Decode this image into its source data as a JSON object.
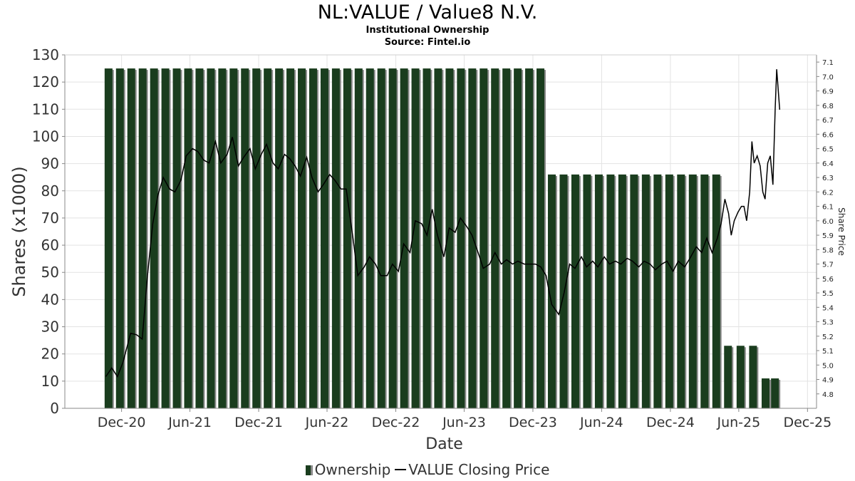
{
  "header": {
    "title": "NL:VALUE / Value8 N.V.",
    "subtitle": "Institutional Ownership",
    "source": "Source: Fintel.io"
  },
  "legend": {
    "ownership": "Ownership",
    "price": "VALUE Closing Price"
  },
  "colors": {
    "bar": "#1a3d1e",
    "bar_shadow": "#8c8c8c",
    "line": "#000000",
    "grid": "#e3e3e3"
  },
  "chart_data": {
    "type": "bar",
    "xlabel": "Date",
    "ylabel": "Shares (x1000)",
    "y2label": "Share Price",
    "ylim": [
      0,
      130
    ],
    "y2lim": [
      4.7,
      7.15
    ],
    "yticks": [
      0,
      10,
      20,
      30,
      40,
      50,
      60,
      70,
      80,
      90,
      100,
      110,
      120,
      130
    ],
    "y2ticks": [
      4.8,
      4.9,
      5.0,
      5.1,
      5.2,
      5.3,
      5.4,
      5.5,
      5.6,
      5.7,
      5.8,
      5.9,
      6.0,
      6.1,
      6.2,
      6.3,
      6.4,
      6.5,
      6.6,
      6.7,
      6.8,
      6.9,
      7.0,
      7.1
    ],
    "xlim": [
      "2020-07-03",
      "2025-12-25"
    ],
    "xticks": [
      {
        "date": "2020-12-01",
        "label": "Dec-20"
      },
      {
        "date": "2021-06-01",
        "label": "Jun-21"
      },
      {
        "date": "2021-12-01",
        "label": "Dec-21"
      },
      {
        "date": "2022-06-01",
        "label": "Jun-22"
      },
      {
        "date": "2022-12-01",
        "label": "Dec-22"
      },
      {
        "date": "2023-06-01",
        "label": "Jun-23"
      },
      {
        "date": "2023-12-01",
        "label": "Dec-23"
      },
      {
        "date": "2024-06-01",
        "label": "Jun-24"
      },
      {
        "date": "2024-12-01",
        "label": "Dec-24"
      },
      {
        "date": "2025-06-01",
        "label": "Jun-25"
      },
      {
        "date": "2025-12-01",
        "label": "Dec-25"
      }
    ],
    "grid": true,
    "legend_position": "bottom",
    "series": [
      {
        "name": "Ownership",
        "kind": "bar",
        "segments": [
          {
            "start": "2020-10-15",
            "end": "2024-01-08",
            "value": 125
          },
          {
            "start": "2024-01-08",
            "end": "2025-04-21",
            "value": 86
          },
          {
            "start": "2025-04-21",
            "end": "2025-07-30",
            "value": 23
          },
          {
            "start": "2025-07-30",
            "end": "2025-09-18",
            "value": 11
          }
        ]
      },
      {
        "name": "VALUE Closing Price",
        "kind": "line",
        "points": [
          [
            "2020-10-20",
            4.92
          ],
          [
            "2020-11-05",
            4.98
          ],
          [
            "2020-11-20",
            4.92
          ],
          [
            "2020-12-05",
            5.02
          ],
          [
            "2020-12-25",
            5.22
          ],
          [
            "2021-01-10",
            5.21
          ],
          [
            "2021-01-25",
            5.18
          ],
          [
            "2021-02-08",
            5.62
          ],
          [
            "2021-02-22",
            5.98
          ],
          [
            "2021-03-08",
            6.18
          ],
          [
            "2021-03-22",
            6.3
          ],
          [
            "2021-04-08",
            6.22
          ],
          [
            "2021-04-22",
            6.2
          ],
          [
            "2021-05-08",
            6.28
          ],
          [
            "2021-05-22",
            6.45
          ],
          [
            "2021-06-08",
            6.5
          ],
          [
            "2021-06-22",
            6.48
          ],
          [
            "2021-07-08",
            6.42
          ],
          [
            "2021-07-22",
            6.4
          ],
          [
            "2021-08-08",
            6.55
          ],
          [
            "2021-08-22",
            6.4
          ],
          [
            "2021-09-08",
            6.46
          ],
          [
            "2021-09-22",
            6.58
          ],
          [
            "2021-10-08",
            6.38
          ],
          [
            "2021-10-22",
            6.44
          ],
          [
            "2021-11-08",
            6.5
          ],
          [
            "2021-11-22",
            6.36
          ],
          [
            "2021-12-08",
            6.46
          ],
          [
            "2021-12-22",
            6.53
          ],
          [
            "2022-01-08",
            6.4
          ],
          [
            "2022-01-22",
            6.36
          ],
          [
            "2022-02-08",
            6.46
          ],
          [
            "2022-02-22",
            6.43
          ],
          [
            "2022-03-08",
            6.38
          ],
          [
            "2022-03-22",
            6.31
          ],
          [
            "2022-04-08",
            6.44
          ],
          [
            "2022-04-22",
            6.3
          ],
          [
            "2022-05-08",
            6.2
          ],
          [
            "2022-05-22",
            6.25
          ],
          [
            "2022-06-08",
            6.32
          ],
          [
            "2022-06-22",
            6.28
          ],
          [
            "2022-07-08",
            6.22
          ],
          [
            "2022-07-22",
            6.22
          ],
          [
            "2022-08-08",
            5.9
          ],
          [
            "2022-08-22",
            5.62
          ],
          [
            "2022-09-08",
            5.68
          ],
          [
            "2022-09-22",
            5.75
          ],
          [
            "2022-10-08",
            5.7
          ],
          [
            "2022-10-22",
            5.62
          ],
          [
            "2022-11-08",
            5.62
          ],
          [
            "2022-11-22",
            5.7
          ],
          [
            "2022-12-08",
            5.65
          ],
          [
            "2022-12-22",
            5.84
          ],
          [
            "2023-01-08",
            5.78
          ],
          [
            "2023-01-22",
            6.0
          ],
          [
            "2023-02-08",
            5.98
          ],
          [
            "2023-02-22",
            5.9
          ],
          [
            "2023-03-08",
            6.08
          ],
          [
            "2023-03-22",
            5.9
          ],
          [
            "2023-04-08",
            5.75
          ],
          [
            "2023-04-22",
            5.95
          ],
          [
            "2023-05-08",
            5.92
          ],
          [
            "2023-05-22",
            6.02
          ],
          [
            "2023-06-08",
            5.96
          ],
          [
            "2023-06-22",
            5.9
          ],
          [
            "2023-07-08",
            5.78
          ],
          [
            "2023-07-22",
            5.67
          ],
          [
            "2023-08-08",
            5.7
          ],
          [
            "2023-08-22",
            5.78
          ],
          [
            "2023-09-08",
            5.7
          ],
          [
            "2023-09-22",
            5.73
          ],
          [
            "2023-10-08",
            5.7
          ],
          [
            "2023-10-22",
            5.72
          ],
          [
            "2023-11-08",
            5.7
          ],
          [
            "2023-11-22",
            5.7
          ],
          [
            "2023-12-08",
            5.7
          ],
          [
            "2023-12-22",
            5.68
          ],
          [
            "2024-01-05",
            5.62
          ],
          [
            "2024-01-20",
            5.42
          ],
          [
            "2024-02-08",
            5.35
          ],
          [
            "2024-02-22",
            5.5
          ],
          [
            "2024-03-08",
            5.7
          ],
          [
            "2024-03-22",
            5.67
          ],
          [
            "2024-04-08",
            5.75
          ],
          [
            "2024-04-22",
            5.68
          ],
          [
            "2024-05-08",
            5.72
          ],
          [
            "2024-05-22",
            5.68
          ],
          [
            "2024-06-08",
            5.75
          ],
          [
            "2024-06-22",
            5.7
          ],
          [
            "2024-07-08",
            5.72
          ],
          [
            "2024-07-22",
            5.7
          ],
          [
            "2024-08-08",
            5.74
          ],
          [
            "2024-08-22",
            5.72
          ],
          [
            "2024-09-08",
            5.68
          ],
          [
            "2024-09-22",
            5.72
          ],
          [
            "2024-10-08",
            5.7
          ],
          [
            "2024-10-22",
            5.66
          ],
          [
            "2024-11-08",
            5.7
          ],
          [
            "2024-11-22",
            5.72
          ],
          [
            "2024-12-08",
            5.65
          ],
          [
            "2024-12-22",
            5.72
          ],
          [
            "2025-01-08",
            5.68
          ],
          [
            "2025-01-22",
            5.74
          ],
          [
            "2025-02-08",
            5.82
          ],
          [
            "2025-02-22",
            5.78
          ],
          [
            "2025-03-08",
            5.88
          ],
          [
            "2025-03-22",
            5.78
          ],
          [
            "2025-04-05",
            5.88
          ],
          [
            "2025-04-15",
            5.98
          ],
          [
            "2025-04-25",
            6.15
          ],
          [
            "2025-05-05",
            6.05
          ],
          [
            "2025-05-12",
            5.9
          ],
          [
            "2025-05-20",
            6.0
          ],
          [
            "2025-05-30",
            6.06
          ],
          [
            "2025-06-08",
            6.1
          ],
          [
            "2025-06-15",
            6.1
          ],
          [
            "2025-06-22",
            6.0
          ],
          [
            "2025-06-30",
            6.2
          ],
          [
            "2025-07-06",
            6.55
          ],
          [
            "2025-07-12",
            6.4
          ],
          [
            "2025-07-20",
            6.45
          ],
          [
            "2025-07-28",
            6.38
          ],
          [
            "2025-08-04",
            6.2
          ],
          [
            "2025-08-10",
            6.15
          ],
          [
            "2025-08-17",
            6.4
          ],
          [
            "2025-08-24",
            6.45
          ],
          [
            "2025-08-31",
            6.25
          ],
          [
            "2025-09-06",
            6.78
          ],
          [
            "2025-09-10",
            7.05
          ],
          [
            "2025-09-18",
            6.77
          ]
        ]
      }
    ]
  }
}
